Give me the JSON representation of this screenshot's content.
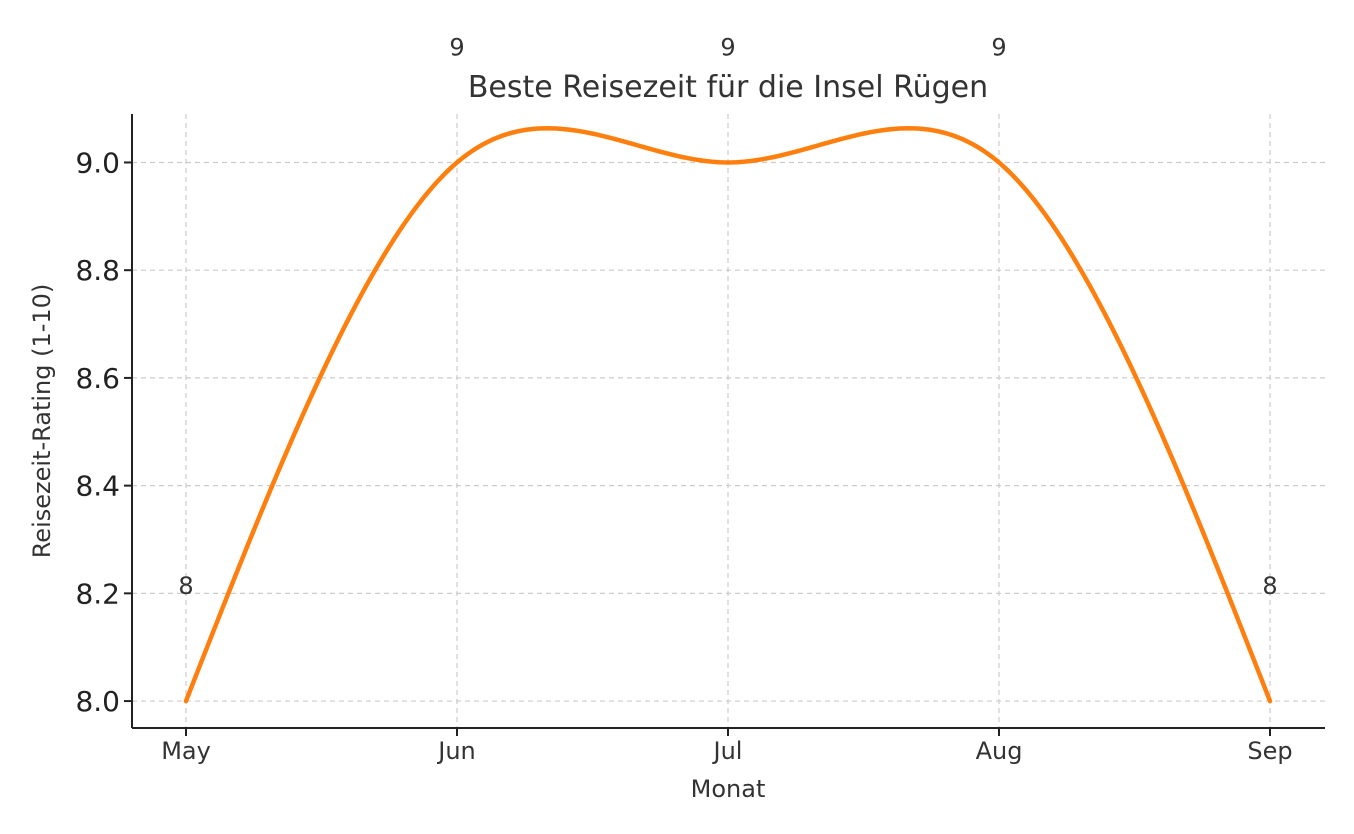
{
  "chart_data": {
    "type": "line",
    "title": "Beste Reisezeit für die Insel Rügen",
    "xlabel": "Monat",
    "ylabel": "Reisezeit-Rating (1-10)",
    "categories": [
      "May",
      "Jun",
      "Jul",
      "Aug",
      "Sep"
    ],
    "values": [
      8,
      9,
      9,
      9,
      8
    ],
    "data_labels": [
      "8",
      "9",
      "9",
      "9",
      "8"
    ],
    "yticks": [
      "8.0",
      "8.2",
      "8.4",
      "8.6",
      "8.8",
      "9.0"
    ],
    "ytick_values": [
      8.0,
      8.2,
      8.4,
      8.6,
      8.8,
      9.0
    ],
    "ylim": [
      7.95,
      9.09
    ],
    "smoothed": true,
    "grid": true,
    "line_color": "#ff7f0e"
  }
}
